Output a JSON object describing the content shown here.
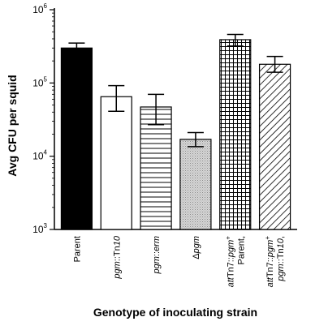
{
  "chart_data": {
    "type": "bar",
    "ylabel": "Avg CFU per squid",
    "xlabel": "Genotype of inoculating strain",
    "yscale": "log",
    "ylim": [
      1000,
      1000000
    ],
    "yticks": [
      {
        "value": 1000,
        "base": "10",
        "exp": "3"
      },
      {
        "value": 10000,
        "base": "10",
        "exp": "4"
      },
      {
        "value": 100000,
        "base": "10",
        "exp": "5"
      },
      {
        "value": 1000000,
        "base": "10",
        "exp": "6"
      }
    ],
    "categories": [
      {
        "lines": [
          [
            {
              "t": "Parent",
              "i": false
            }
          ]
        ]
      },
      {
        "lines": [
          [
            {
              "t": "pgm",
              "i": true
            },
            {
              "t": "::Tn",
              "i": false
            },
            {
              "t": "10",
              "i": true
            }
          ]
        ]
      },
      {
        "lines": [
          [
            {
              "t": "pgm",
              "i": true
            },
            {
              "t": "::",
              "i": false
            },
            {
              "t": "erm",
              "i": true
            }
          ]
        ]
      },
      {
        "lines": [
          [
            {
              "t": "Δ",
              "i": false
            },
            {
              "t": "pgm",
              "i": true
            }
          ]
        ]
      },
      {
        "lines": [
          [
            {
              "t": "Parent,",
              "i": false
            }
          ],
          [
            {
              "t": "att",
              "i": true
            },
            {
              "t": "Tn7::",
              "i": false
            },
            {
              "t": "pgm",
              "i": true
            },
            {
              "t": "+",
              "i": false,
              "sup": true
            }
          ]
        ]
      },
      {
        "lines": [
          [
            {
              "t": "pgm",
              "i": true
            },
            {
              "t": "::Tn",
              "i": false
            },
            {
              "t": "10",
              "i": true
            },
            {
              "t": ",",
              "i": false
            }
          ],
          [
            {
              "t": "att",
              "i": true
            },
            {
              "t": "Tn7::",
              "i": false
            },
            {
              "t": "pgm",
              "i": true
            },
            {
              "t": "+",
              "i": false,
              "sup": true
            }
          ]
        ]
      }
    ],
    "values": [
      300000,
      65000,
      47000,
      17000,
      390000,
      180000
    ],
    "err_low": [
      240000,
      41000,
      27000,
      13500,
      320000,
      140000
    ],
    "err_high": [
      350000,
      92000,
      70000,
      21000,
      460000,
      230000
    ],
    "fills": [
      "solid-black",
      "white",
      "horizontal-lines",
      "stipple-gray",
      "grid",
      "diagonal-lines"
    ]
  }
}
